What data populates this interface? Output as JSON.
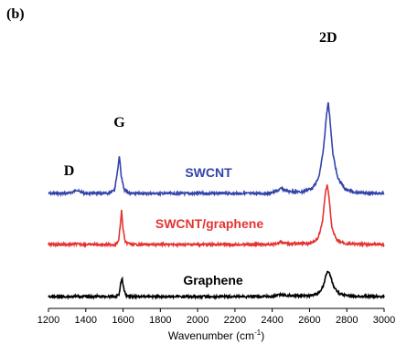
{
  "panel_label": "(b)",
  "chart_data": {
    "type": "line",
    "title": "",
    "xlabel": "Wavenumber (cm",
    "xlabel_superscript": "-1",
    "xlabel_suffix": ")",
    "ylabel": "",
    "xlim": [
      1200,
      3000
    ],
    "x_ticks": [
      "1200",
      "1400",
      "1600",
      "1800",
      "2000",
      "2200",
      "2400",
      "2600",
      "2800",
      "3000"
    ],
    "y_ticks_shown": false,
    "grid": false,
    "legend": "none",
    "peak_labels": [
      {
        "text": "D",
        "x": 1350
      },
      {
        "text": "G",
        "x": 1580
      },
      {
        "text": "2D",
        "x": 2700
      }
    ],
    "series": [
      {
        "name": "SWCNT",
        "color": "#3344aa",
        "offset": 2,
        "points": [
          [
            1200,
            0
          ],
          [
            1300,
            0
          ],
          [
            1330,
            0.02
          ],
          [
            1350,
            0.05
          ],
          [
            1370,
            0.02
          ],
          [
            1400,
            0
          ],
          [
            1520,
            0
          ],
          [
            1555,
            0.06
          ],
          [
            1570,
            0.3
          ],
          [
            1580,
            0.52
          ],
          [
            1590,
            0.25
          ],
          [
            1605,
            0.05
          ],
          [
            1640,
            0
          ],
          [
            2380,
            0
          ],
          [
            2420,
            0.03
          ],
          [
            2450,
            0.07
          ],
          [
            2480,
            0.03
          ],
          [
            2560,
            0.02
          ],
          [
            2620,
            0.08
          ],
          [
            2650,
            0.22
          ],
          [
            2675,
            0.6
          ],
          [
            2690,
            1.05
          ],
          [
            2700,
            1.26
          ],
          [
            2710,
            1.0
          ],
          [
            2725,
            0.55
          ],
          [
            2750,
            0.22
          ],
          [
            2790,
            0.06
          ],
          [
            2850,
            0.01
          ],
          [
            3000,
            0
          ]
        ]
      },
      {
        "name": "SWCNT/graphene",
        "color": "#e53333",
        "offset": 1,
        "points": [
          [
            1200,
            0
          ],
          [
            1300,
            0
          ],
          [
            1350,
            0.01
          ],
          [
            1400,
            0
          ],
          [
            1560,
            0
          ],
          [
            1575,
            0.05
          ],
          [
            1585,
            0.35
          ],
          [
            1592,
            0.62
          ],
          [
            1600,
            0.28
          ],
          [
            1612,
            0.04
          ],
          [
            1650,
            0
          ],
          [
            2400,
            0
          ],
          [
            2430,
            0.03
          ],
          [
            2450,
            0.05
          ],
          [
            2470,
            0.02
          ],
          [
            2600,
            0.02
          ],
          [
            2645,
            0.1
          ],
          [
            2670,
            0.42
          ],
          [
            2685,
            0.95
          ],
          [
            2695,
            1.1
          ],
          [
            2705,
            0.85
          ],
          [
            2720,
            0.3
          ],
          [
            2745,
            0.08
          ],
          [
            2800,
            0.01
          ],
          [
            3000,
            0
          ]
        ]
      },
      {
        "name": "Graphene",
        "color": "#000000",
        "offset": 0,
        "points": [
          [
            1200,
            0
          ],
          [
            1560,
            0
          ],
          [
            1578,
            0.04
          ],
          [
            1588,
            0.25
          ],
          [
            1595,
            0.34
          ],
          [
            1603,
            0.15
          ],
          [
            1615,
            0.02
          ],
          [
            1650,
            0
          ],
          [
            2400,
            0
          ],
          [
            2430,
            0.02
          ],
          [
            2450,
            0.04
          ],
          [
            2470,
            0.02
          ],
          [
            2600,
            0.01
          ],
          [
            2650,
            0.06
          ],
          [
            2675,
            0.2
          ],
          [
            2690,
            0.42
          ],
          [
            2700,
            0.46
          ],
          [
            2712,
            0.38
          ],
          [
            2730,
            0.18
          ],
          [
            2760,
            0.05
          ],
          [
            2820,
            0.01
          ],
          [
            3000,
            0
          ]
        ]
      }
    ]
  }
}
